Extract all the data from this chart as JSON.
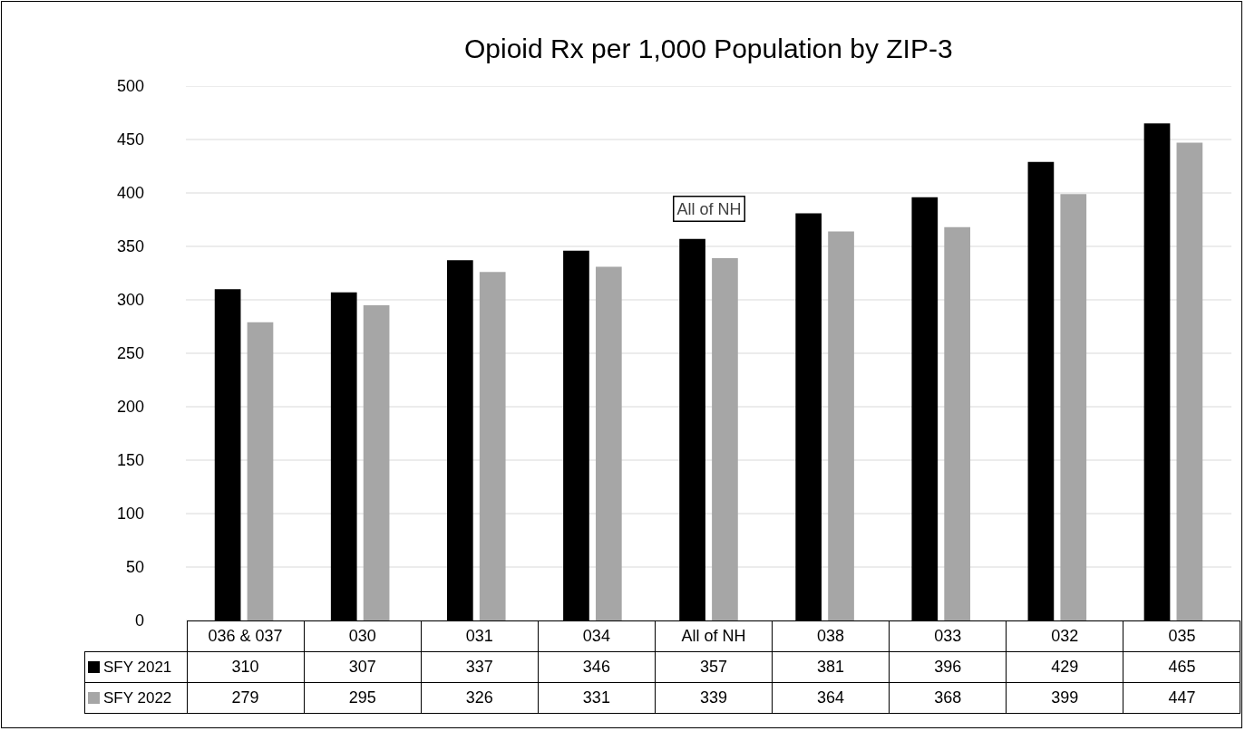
{
  "chart_data": {
    "type": "bar",
    "title": "Opioid Rx per 1,000 Population by ZIP-3",
    "categories": [
      "036 & 037",
      "030",
      "031",
      "034",
      "All of NH",
      "038",
      "033",
      "032",
      "035"
    ],
    "series": [
      {
        "name": "SFY 2021",
        "color": "#000000",
        "values": [
          310,
          307,
          337,
          346,
          357,
          381,
          396,
          429,
          465
        ]
      },
      {
        "name": "SFY 2022",
        "color": "#a6a6a6",
        "values": [
          279,
          295,
          326,
          331,
          339,
          364,
          368,
          399,
          447
        ]
      }
    ],
    "ylim": [
      0,
      500
    ],
    "yticks": [
      0,
      50,
      100,
      150,
      200,
      250,
      300,
      350,
      400,
      450,
      500
    ],
    "grid": "y",
    "legend": "bottom",
    "data_labels": true,
    "annotations": [
      "All of NH"
    ]
  }
}
